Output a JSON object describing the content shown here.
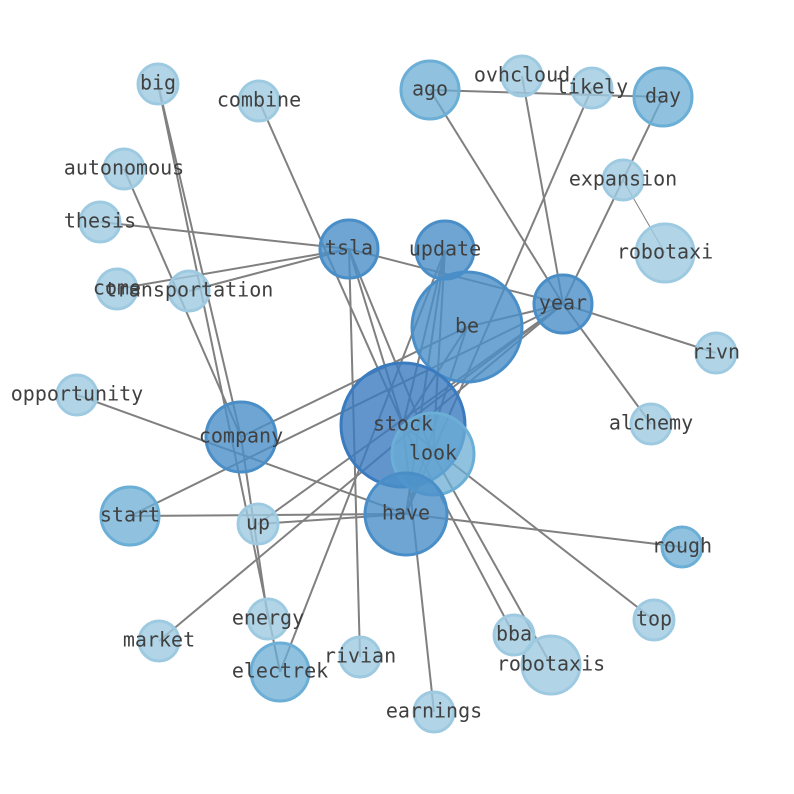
{
  "nodes": [
    {
      "label": "big"
    },
    {
      "label": "combine"
    },
    {
      "label": "ago"
    },
    {
      "label": "ovhcloud"
    },
    {
      "label": "likely"
    },
    {
      "label": "day"
    },
    {
      "label": "autonomous"
    },
    {
      "label": "expansion"
    },
    {
      "label": "thesis"
    },
    {
      "label": "robotaxi"
    },
    {
      "label": "tsla"
    },
    {
      "label": "update"
    },
    {
      "label": "come"
    },
    {
      "label": "transportation"
    },
    {
      "label": "be"
    },
    {
      "label": "year"
    },
    {
      "label": "rivn"
    },
    {
      "label": "opportunity"
    },
    {
      "label": "alchemy"
    },
    {
      "label": "company"
    },
    {
      "label": "stock"
    },
    {
      "label": "look"
    },
    {
      "label": "start"
    },
    {
      "label": "up"
    },
    {
      "label": "have"
    },
    {
      "label": "rough"
    },
    {
      "label": "energy"
    },
    {
      "label": "top"
    },
    {
      "label": "market"
    },
    {
      "label": "bba"
    },
    {
      "label": "electrek"
    },
    {
      "label": "rivian"
    },
    {
      "label": "robotaxis"
    },
    {
      "label": "earnings"
    }
  ]
}
